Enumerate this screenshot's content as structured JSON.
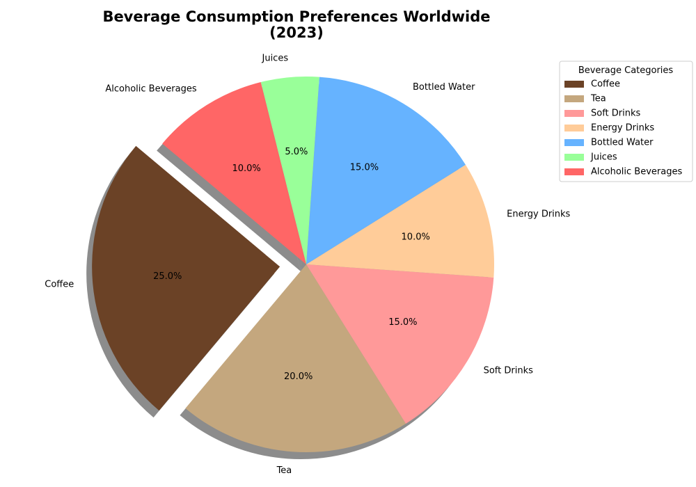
{
  "chart_data": {
    "type": "pie",
    "title": "Beverage Consumption Preferences Worldwide",
    "title_line2": "(2023)",
    "categories": [
      "Coffee",
      "Tea",
      "Soft Drinks",
      "Energy Drinks",
      "Bottled Water",
      "Juices",
      "Alcoholic Beverages"
    ],
    "values": [
      25,
      20,
      15,
      10,
      15,
      5,
      10
    ],
    "percent_labels": [
      "25.0%",
      "20.0%",
      "15.0%",
      "10.0%",
      "15.0%",
      "5.0%",
      "10.0%"
    ],
    "colors": [
      "#6b4226",
      "#c4a77e",
      "#ff9999",
      "#ffcc99",
      "#66b3ff",
      "#99ff99",
      "#ff6666"
    ],
    "exploded": [
      "Coffee"
    ],
    "shadow": true,
    "start_angle_deg": 140,
    "direction": "counterclockwise",
    "legend": {
      "title": "Beverage Categories",
      "placement": "upper-right outside"
    }
  }
}
